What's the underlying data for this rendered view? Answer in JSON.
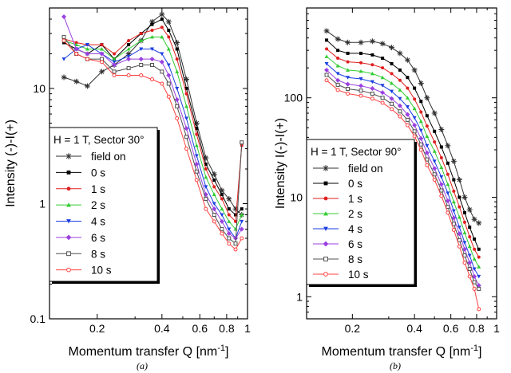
{
  "chart_data": [
    {
      "type": "line",
      "panel_label": "(a)",
      "xscale": "log",
      "yscale": "log",
      "xlim": [
        0.12,
        1.0
      ],
      "ylim": [
        0.1,
        50
      ],
      "xlabel_main": "Momentum transfer Q [nm",
      "xlabel_sup": "-1",
      "xlabel_tail": "]",
      "ylabel": "Intensity (-)-I(+)",
      "x_ticks": [
        {
          "value": 0.2,
          "label": "0.2"
        },
        {
          "value": 0.4,
          "label": "0.4"
        },
        {
          "value": 0.6,
          "label": "0.6"
        },
        {
          "value": 0.8,
          "label": "0.8"
        },
        {
          "value": 1.0,
          "label": "1"
        }
      ],
      "x_minor_ticks": [
        0.3,
        0.5,
        0.7,
        0.9
      ],
      "y_ticks": [
        {
          "value": 0.1,
          "label": "0.1"
        },
        {
          "value": 1,
          "label": "1"
        },
        {
          "value": 10,
          "label": "10"
        }
      ],
      "legend_title": "H = 1 T, Sector 30°",
      "legend_placement": "lower-left",
      "series": [
        {
          "name": "field on",
          "color": "#303030",
          "marker": "star",
          "x": [
            0.14,
            0.16,
            0.18,
            0.21,
            0.24,
            0.28,
            0.32,
            0.36,
            0.4,
            0.43,
            0.47,
            0.52,
            0.58,
            0.64,
            0.7,
            0.76,
            0.82,
            0.88,
            0.94
          ],
          "y": [
            12.5,
            11.5,
            10.5,
            14,
            16,
            20,
            26,
            38,
            44,
            38,
            25,
            12,
            5,
            2.5,
            1.8,
            1.3,
            1.1,
            0.9,
            0.8
          ]
        },
        {
          "name": "0 s",
          "color": "#000000",
          "marker": "square",
          "x": [
            0.14,
            0.16,
            0.18,
            0.21,
            0.24,
            0.28,
            0.32,
            0.36,
            0.4,
            0.43,
            0.47,
            0.52,
            0.58,
            0.64,
            0.7,
            0.76,
            0.82,
            0.88,
            0.94
          ],
          "y": [
            25,
            22,
            20,
            24,
            18,
            24,
            30,
            36,
            40,
            32,
            22,
            10,
            4.5,
            2.2,
            1.6,
            1.2,
            0.9,
            0.8,
            0.9
          ]
        },
        {
          "name": "1 s",
          "color": "#e02020",
          "marker": "circle",
          "x": [
            0.14,
            0.16,
            0.18,
            0.21,
            0.24,
            0.28,
            0.32,
            0.36,
            0.4,
            0.43,
            0.47,
            0.52,
            0.58,
            0.64,
            0.7,
            0.76,
            0.82,
            0.88,
            0.94
          ],
          "y": [
            27,
            25,
            24,
            24,
            20,
            26,
            30,
            32,
            34,
            28,
            18,
            9,
            4,
            2,
            1.4,
            1.1,
            0.8,
            0.7,
            3.2
          ]
        },
        {
          "name": "2 s",
          "color": "#33cc33",
          "marker": "triangle-up",
          "x": [
            0.14,
            0.16,
            0.18,
            0.21,
            0.24,
            0.28,
            0.32,
            0.36,
            0.4,
            0.43,
            0.47,
            0.52,
            0.58,
            0.64,
            0.7,
            0.76,
            0.82,
            0.88,
            0.94
          ],
          "y": [
            26,
            24,
            22,
            22,
            18,
            22,
            26,
            28,
            28,
            22,
            14,
            7,
            3.2,
            1.7,
            1.2,
            0.9,
            0.7,
            0.6,
            0.8
          ]
        },
        {
          "name": "4 s",
          "color": "#1a3ee0",
          "marker": "triangle-down",
          "x": [
            0.14,
            0.16,
            0.18,
            0.21,
            0.24,
            0.28,
            0.32,
            0.36,
            0.4,
            0.43,
            0.47,
            0.52,
            0.58,
            0.64,
            0.7,
            0.76,
            0.82,
            0.88,
            0.94
          ],
          "y": [
            18,
            22,
            24,
            20,
            17,
            19,
            22,
            22,
            20,
            16,
            10,
            5.5,
            2.6,
            1.4,
            1.0,
            0.8,
            0.6,
            0.5,
            0.7
          ]
        },
        {
          "name": "6 s",
          "color": "#9a40e0",
          "marker": "diamond",
          "x": [
            0.14,
            0.16,
            0.18,
            0.21,
            0.24,
            0.28,
            0.32,
            0.36,
            0.4,
            0.43,
            0.47,
            0.52,
            0.58,
            0.64,
            0.7,
            0.76,
            0.82,
            0.88,
            0.94
          ],
          "y": [
            42,
            22,
            20,
            20,
            16,
            18,
            18,
            18,
            17,
            13,
            8,
            4.5,
            2.2,
            1.2,
            0.9,
            0.7,
            0.55,
            0.5,
            0.6
          ]
        },
        {
          "name": "8 s",
          "color": "#505050",
          "marker": "square-open",
          "x": [
            0.14,
            0.16,
            0.18,
            0.21,
            0.24,
            0.28,
            0.32,
            0.36,
            0.4,
            0.43,
            0.47,
            0.52,
            0.58,
            0.64,
            0.7,
            0.76,
            0.82,
            0.88,
            0.94
          ],
          "y": [
            28,
            20,
            18,
            18,
            14,
            15,
            16,
            16,
            14,
            11,
            7,
            3.8,
            1.9,
            1.1,
            0.8,
            0.6,
            0.5,
            0.45,
            3.4
          ]
        },
        {
          "name": "10 s",
          "color": "#ff4040",
          "marker": "circle-open",
          "x": [
            0.14,
            0.16,
            0.18,
            0.21,
            0.24,
            0.28,
            0.32,
            0.36,
            0.4,
            0.43,
            0.47,
            0.52,
            0.58,
            0.64,
            0.7,
            0.76,
            0.82,
            0.88,
            0.94
          ],
          "y": [
            26,
            20,
            18,
            17,
            13,
            13,
            13,
            12,
            11,
            8.5,
            5.5,
            3.0,
            1.6,
            0.9,
            0.7,
            0.55,
            0.45,
            0.4,
            0.5
          ]
        }
      ]
    },
    {
      "type": "line",
      "panel_label": "(b)",
      "xscale": "log",
      "yscale": "log",
      "xlim": [
        0.12,
        1.0
      ],
      "ylim": [
        0.6,
        800
      ],
      "xlabel_main": "Momentum transfer Q [nm",
      "xlabel_sup": "-1",
      "xlabel_tail": "]",
      "ylabel": "Intensity I(-)-I(+)",
      "x_ticks": [
        {
          "value": 0.2,
          "label": "0.2"
        },
        {
          "value": 0.4,
          "label": "0.4"
        },
        {
          "value": 0.6,
          "label": "0.6"
        },
        {
          "value": 0.8,
          "label": "0.8"
        },
        {
          "value": 1.0,
          "label": "1"
        }
      ],
      "x_minor_ticks": [
        0.3,
        0.5,
        0.7,
        0.9
      ],
      "y_ticks": [
        {
          "value": 1,
          "label": "1"
        },
        {
          "value": 10,
          "label": "10"
        },
        {
          "value": 100,
          "label": "100"
        }
      ],
      "legend_title": "H = 1 T, Sector 90°",
      "legend_placement": "lower-left",
      "series": [
        {
          "name": "field on",
          "color": "#303030",
          "marker": "star",
          "x": [
            0.15,
            0.17,
            0.19,
            0.22,
            0.25,
            0.28,
            0.31,
            0.34,
            0.37,
            0.4,
            0.43,
            0.46,
            0.5,
            0.54,
            0.58,
            0.62,
            0.66,
            0.7,
            0.74,
            0.78,
            0.82
          ],
          "y": [
            470,
            390,
            360,
            360,
            370,
            350,
            320,
            280,
            240,
            190,
            140,
            100,
            70,
            48,
            33,
            23,
            15,
            10,
            7.5,
            6,
            5.5
          ]
        },
        {
          "name": "0 s",
          "color": "#000000",
          "marker": "square",
          "x": [
            0.15,
            0.17,
            0.19,
            0.22,
            0.25,
            0.28,
            0.31,
            0.34,
            0.37,
            0.4,
            0.43,
            0.46,
            0.5,
            0.54,
            0.58,
            0.62,
            0.66,
            0.7,
            0.74,
            0.78,
            0.82
          ],
          "y": [
            380,
            300,
            280,
            280,
            270,
            250,
            220,
            190,
            160,
            125,
            92,
            66,
            46,
            32,
            22,
            15,
            10,
            7,
            5,
            3.8,
            3
          ]
        },
        {
          "name": "1 s",
          "color": "#e02020",
          "marker": "circle",
          "x": [
            0.15,
            0.17,
            0.19,
            0.22,
            0.25,
            0.28,
            0.31,
            0.34,
            0.37,
            0.4,
            0.43,
            0.46,
            0.5,
            0.54,
            0.58,
            0.62,
            0.66,
            0.7,
            0.74,
            0.78,
            0.82
          ],
          "y": [
            310,
            250,
            230,
            225,
            215,
            200,
            175,
            150,
            125,
            97,
            72,
            52,
            36,
            25,
            17,
            11.5,
            8,
            5.6,
            4,
            3,
            2.5
          ]
        },
        {
          "name": "2 s",
          "color": "#33cc33",
          "marker": "triangle-up",
          "x": [
            0.15,
            0.17,
            0.19,
            0.22,
            0.25,
            0.28,
            0.31,
            0.34,
            0.37,
            0.4,
            0.43,
            0.46,
            0.5,
            0.54,
            0.58,
            0.62,
            0.66,
            0.7,
            0.74,
            0.78,
            0.82
          ],
          "y": [
            260,
            210,
            190,
            185,
            175,
            160,
            140,
            120,
            100,
            78,
            58,
            41,
            29,
            20,
            13.5,
            9,
            6.3,
            4.4,
            3.2,
            2.4,
            2
          ]
        },
        {
          "name": "4 s",
          "color": "#1a3ee0",
          "marker": "triangle-down",
          "x": [
            0.15,
            0.17,
            0.19,
            0.22,
            0.25,
            0.28,
            0.31,
            0.34,
            0.37,
            0.4,
            0.43,
            0.46,
            0.5,
            0.54,
            0.58,
            0.62,
            0.66,
            0.7,
            0.74,
            0.78,
            0.82
          ],
          "y": [
            220,
            175,
            160,
            155,
            145,
            133,
            116,
            98,
            81,
            63,
            47,
            33,
            23,
            16,
            11,
            7.3,
            5,
            3.5,
            2.6,
            1.9,
            1.6
          ]
        },
        {
          "name": "6 s",
          "color": "#9a40e0",
          "marker": "diamond",
          "x": [
            0.15,
            0.17,
            0.19,
            0.22,
            0.25,
            0.28,
            0.31,
            0.34,
            0.37,
            0.4,
            0.43,
            0.46,
            0.5,
            0.54,
            0.58,
            0.62,
            0.66,
            0.7,
            0.74,
            0.78,
            0.82
          ],
          "y": [
            190,
            150,
            137,
            132,
            124,
            113,
            98,
            83,
            68,
            53,
            39,
            28,
            19.5,
            13.5,
            9.2,
            6.2,
            4.3,
            3,
            2.2,
            1.6,
            1.3
          ]
        },
        {
          "name": "8 s",
          "color": "#505050",
          "marker": "square-open",
          "x": [
            0.15,
            0.17,
            0.19,
            0.22,
            0.25,
            0.28,
            0.31,
            0.34,
            0.37,
            0.4,
            0.43,
            0.46,
            0.5,
            0.54,
            0.58,
            0.62,
            0.66,
            0.7,
            0.74,
            0.78,
            0.82
          ],
          "y": [
            170,
            135,
            123,
            118,
            110,
            100,
            87,
            73,
            60,
            46,
            34,
            24,
            17,
            11.7,
            8,
            5.4,
            3.7,
            2.6,
            1.9,
            1.4,
            1.2
          ]
        },
        {
          "name": "10 s",
          "color": "#ff4040",
          "marker": "circle-open",
          "x": [
            0.15,
            0.17,
            0.19,
            0.22,
            0.25,
            0.28,
            0.31,
            0.34,
            0.37,
            0.4,
            0.43,
            0.46,
            0.5,
            0.54,
            0.58,
            0.62,
            0.66,
            0.7,
            0.74,
            0.78,
            0.82
          ],
          "y": [
            150,
            120,
            110,
            105,
            98,
            89,
            77,
            65,
            53,
            41,
            30,
            21,
            15,
            10.3,
            7,
            4.7,
            3.2,
            2.2,
            1.6,
            1.2,
            0.75
          ]
        }
      ]
    }
  ]
}
